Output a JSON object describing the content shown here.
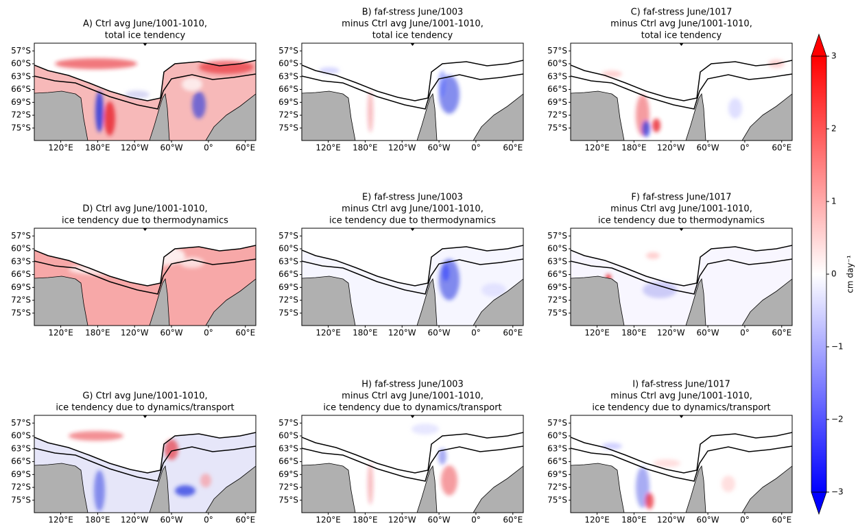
{
  "panels": [
    {
      "title": [
        "A) Ctrl avg June/1001-1010,",
        "total ice tendency"
      ]
    },
    {
      "title": [
        "B) faf-stress June/1003",
        "minus Ctrl avg June/1001-1010,",
        "total ice tendency"
      ]
    },
    {
      "title": [
        "C) faf-stress June/1017",
        "minus Ctrl avg June/1001-1010,",
        "total ice tendency"
      ]
    },
    {
      "title": [
        "D) Ctrl avg June/1001-1010,",
        "ice tendency due to thermodynamics"
      ]
    },
    {
      "title": [
        "E) faf-stress June/1003",
        "minus Ctrl avg June/1001-1010,",
        "ice tendency due to thermodynamics"
      ]
    },
    {
      "title": [
        "F) faf-stress June/1017",
        "minus Ctrl avg June/1001-1010,",
        "ice tendency due to thermodynamics"
      ]
    },
    {
      "title": [
        "G) Ctrl avg June/1001-1010,",
        "ice tendency due to dynamics/transport"
      ]
    },
    {
      "title": [
        "H) faf-stress June/1003",
        "minus Ctrl avg June/1001-1010,",
        "ice tendency due to dynamics/transport"
      ]
    },
    {
      "title": [
        "I) faf-stress June/1017",
        "minus Ctrl avg June/1001-1010,",
        "ice tendency due to dynamics/transport"
      ]
    }
  ],
  "axes": {
    "latlim": [
      -55.2,
      -77.9
    ],
    "lat_ticks": [
      {
        "value": -57,
        "label": "57°S"
      },
      {
        "value": -60,
        "label": "60°S"
      },
      {
        "value": -63,
        "label": "63°S"
      },
      {
        "value": -66,
        "label": "66°S"
      },
      {
        "value": -69,
        "label": "69°S"
      },
      {
        "value": -72,
        "label": "72°S"
      },
      {
        "value": -75,
        "label": "75°S"
      }
    ],
    "lonlim": [
      77,
      437
    ],
    "lon_ticks": [
      {
        "value": 120,
        "label": "120°E"
      },
      {
        "value": 180,
        "label": "180°E"
      },
      {
        "value": -120,
        "label": "120°W"
      },
      {
        "value": -60,
        "label": "60°W"
      },
      {
        "value": 0,
        "label": "0°"
      },
      {
        "value": 60,
        "label": "60°E"
      }
    ]
  },
  "colorbar": {
    "label": "cm day⁻¹",
    "lim": [
      -3,
      3
    ],
    "colors": [
      "#0000ff",
      "#ffffff",
      "#ff0000"
    ],
    "ticks": [
      {
        "value": 3,
        "label": "3"
      },
      {
        "value": 2,
        "label": "2"
      },
      {
        "value": 1,
        "label": "1"
      },
      {
        "value": 0,
        "label": "0"
      },
      {
        "value": -1,
        "label": "−1"
      },
      {
        "value": -2,
        "label": "−2"
      },
      {
        "value": -3,
        "label": "−3"
      }
    ]
  }
}
